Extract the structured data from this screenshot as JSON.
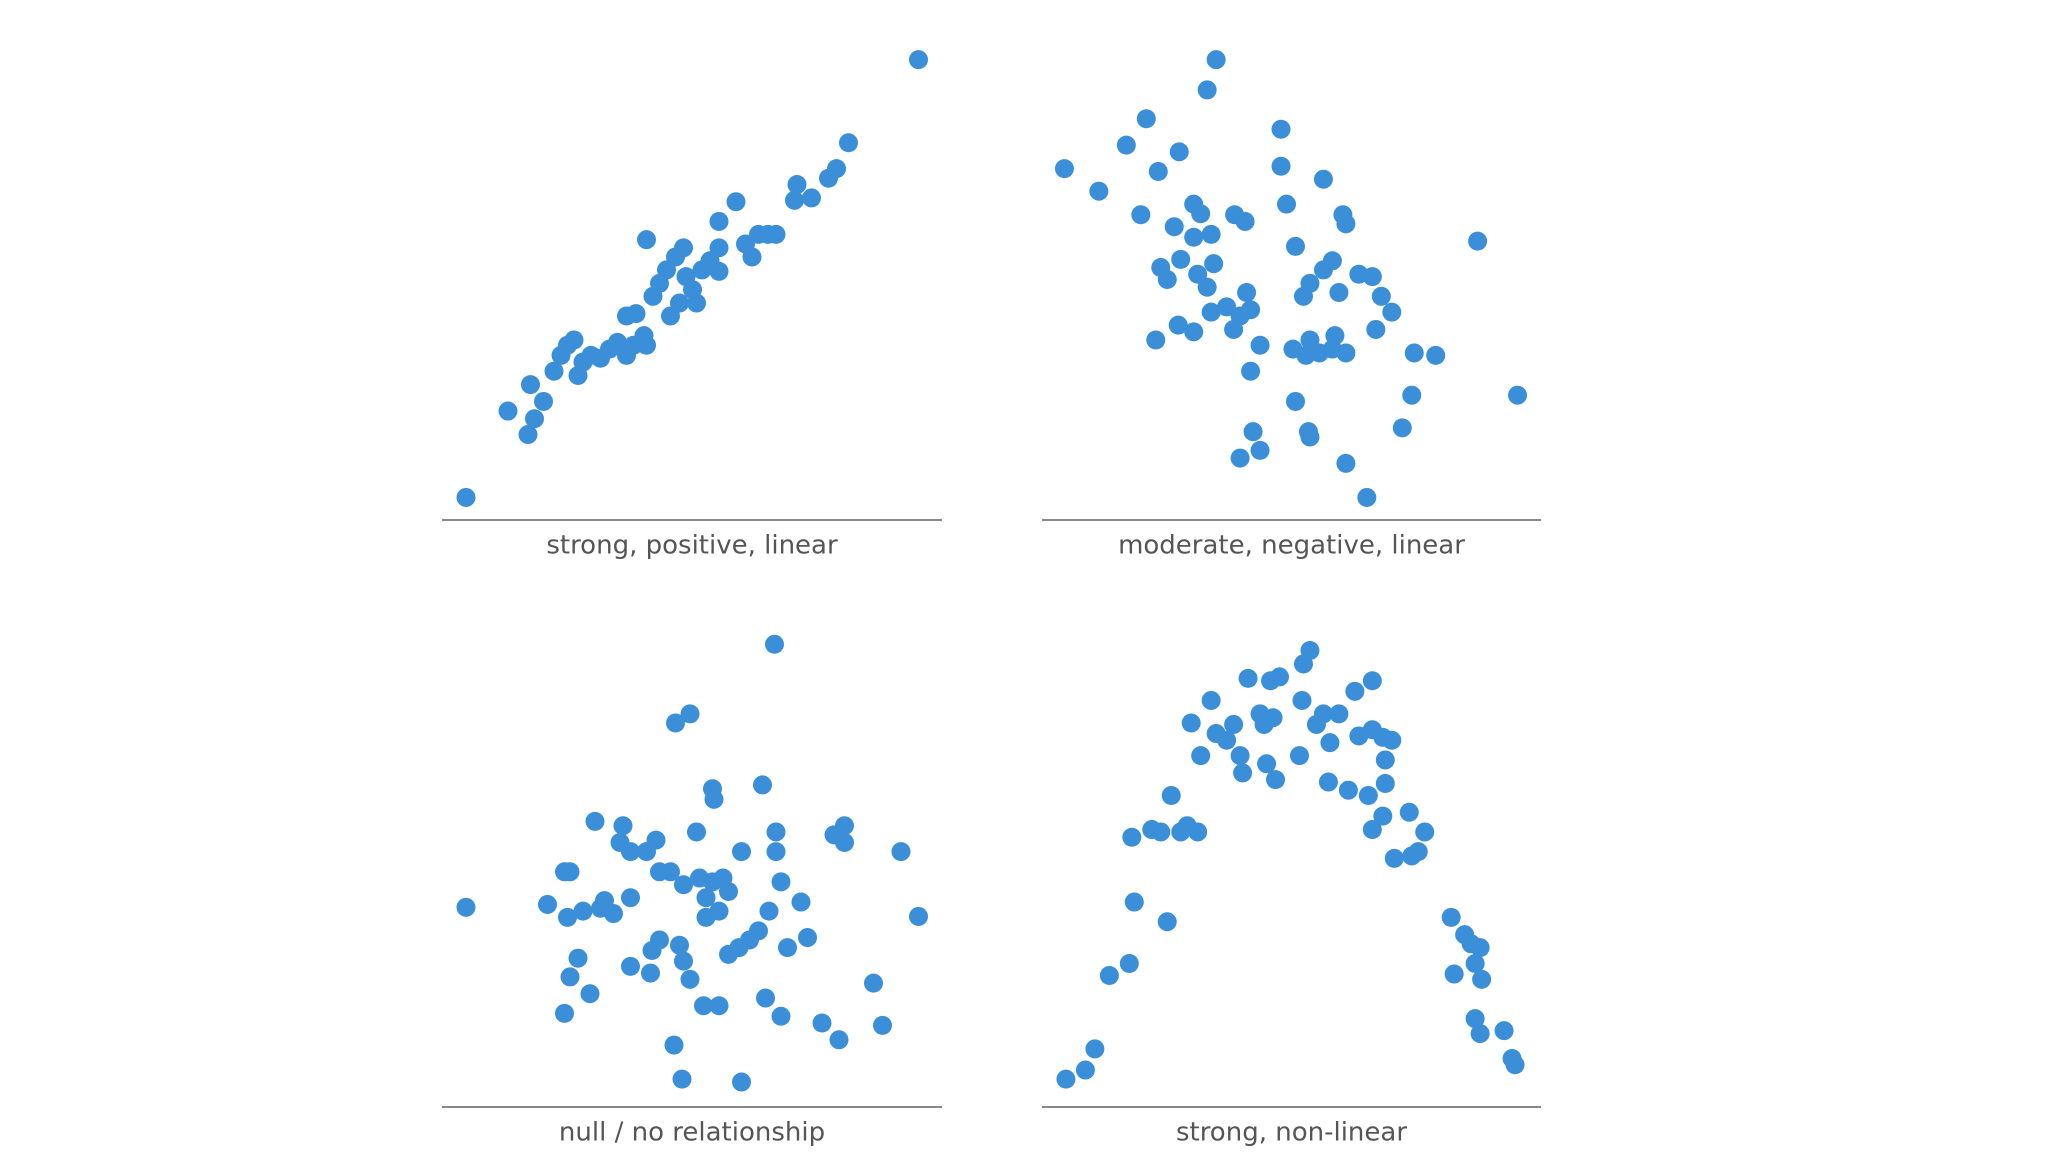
{
  "chart_data": [
    {
      "type": "scatter",
      "xlabel": "strong, positive, linear",
      "color": "#3b8fd8",
      "xlim": [
        0,
        100
      ],
      "ylim": [
        0,
        100
      ],
      "x": [
        4.8,
        13.2,
        17.2,
        18.5,
        20.3,
        17.7,
        22.4,
        23.8,
        25.1,
        26.4,
        27.2,
        28.2,
        29.8,
        31.7,
        33.5,
        35.1,
        36.9,
        38.3,
        40.4,
        40.9,
        36.9,
        38.8,
        40.9,
        42.2,
        43.5,
        44.9,
        45.7,
        46.7,
        47.5,
        48.3,
        48.8,
        50.1,
        50.9,
        52.0,
        53.6,
        55.4,
        55.4,
        55.4,
        58.8,
        60.7,
        62.0,
        63.3,
        65.2,
        66.8,
        70.5,
        71.0,
        73.9,
        77.3,
        78.9,
        81.3,
        95.3
      ],
      "y": [
        4.7,
        22.7,
        17.8,
        21.1,
        24.7,
        28.2,
        31.0,
        34.3,
        36.4,
        37.5,
        30.1,
        32.9,
        34.3,
        33.7,
        35.6,
        37.0,
        34.3,
        36.4,
        38.4,
        36.4,
        42.5,
        43.0,
        58.4,
        46.6,
        49.3,
        52.1,
        42.5,
        54.8,
        45.2,
        56.7,
        50.7,
        48.0,
        45.2,
        52.1,
        54.0,
        56.7,
        62.2,
        51.8,
        66.3,
        57.5,
        54.8,
        59.5,
        59.5,
        59.5,
        66.6,
        69.9,
        67.1,
        71.2,
        73.2,
        78.6,
        95.9
      ]
    },
    {
      "type": "scatter",
      "xlabel": "moderate, negative, linear",
      "color": "#3b8fd8",
      "xlim": [
        0,
        100
      ],
      "ylim": [
        0,
        100
      ],
      "x": [
        4.5,
        11.4,
        16.9,
        20.9,
        23.3,
        27.5,
        19.8,
        26.5,
        30.4,
        31.8,
        30.4,
        33.9,
        38.6,
        40.7,
        34.9,
        33.1,
        47.9,
        47.9,
        49.0,
        56.4,
        60.3,
        60.9,
        50.8,
        23.8,
        25.1,
        27.8,
        31.2,
        33.1,
        34.4,
        37.0,
        39.7,
        41.0,
        41.8,
        38.4,
        33.9,
        27.3,
        30.4,
        22.8,
        43.7,
        41.8,
        50.3,
        52.9,
        55.6,
        58.2,
        60.9,
        53.7,
        58.7,
        52.4,
        53.7,
        56.4,
        58.2,
        59.5,
        63.5,
        66.2,
        68.0,
        70.1,
        66.9,
        74.6,
        78.9,
        50.8,
        53.4,
        53.7,
        42.3,
        43.7,
        39.7,
        60.9,
        65.1,
        72.2,
        74.1,
        87.3,
        95.3
      ],
      "y": [
        73.2,
        68.5,
        78.1,
        83.6,
        72.6,
        76.7,
        63.6,
        61.1,
        65.8,
        63.8,
        58.9,
        59.5,
        63.6,
        62.2,
        95.9,
        89.6,
        81.4,
        73.7,
        65.8,
        71.0,
        63.6,
        61.7,
        57.0,
        52.6,
        50.1,
        54.3,
        51.2,
        48.5,
        53.4,
        44.4,
        42.5,
        47.4,
        43.8,
        39.7,
        43.3,
        40.6,
        39.2,
        37.5,
        36.4,
        31.0,
        35.6,
        34.3,
        34.8,
        35.6,
        34.8,
        37.5,
        38.4,
        46.6,
        49.3,
        52.1,
        54.0,
        47.4,
        51.2,
        50.7,
        46.6,
        43.3,
        39.7,
        34.8,
        34.3,
        24.7,
        18.4,
        17.3,
        18.4,
        14.5,
        12.9,
        11.8,
        4.7,
        19.2,
        26.0,
        58.1,
        26.0
      ]
    },
    {
      "type": "scatter",
      "xlabel": "null / no relationship",
      "color": "#3b8fd8",
      "xlim": [
        0,
        100
      ],
      "ylim": [
        0,
        100
      ],
      "x": [
        4.8,
        21.1,
        24.5,
        25.6,
        25.1,
        28.2,
        31.7,
        32.5,
        34.3,
        37.7,
        30.6,
        36.2,
        35.6,
        37.7,
        40.9,
        42.8,
        43.5,
        45.7,
        50.9,
        46.7,
        49.6,
        54.1,
        54.4,
        64.1,
        66.5,
        59.9,
        66.8,
        66.8,
        78.4,
        80.5,
        80.5,
        91.8,
        95.3,
        48.3,
        51.5,
        54.1,
        56.2,
        57.3,
        52.8,
        52.8,
        55.4,
        67.8,
        71.8,
        65.4,
        63.3,
        61.5,
        59.4,
        57.3,
        69.1,
        73.1,
        47.5,
        48.3,
        49.6,
        43.5,
        42.0,
        41.7,
        37.7,
        27.2,
        25.6,
        29.6,
        24.5,
        52.3,
        55.4,
        64.7,
        67.8,
        76.0,
        79.4,
        86.3,
        88.1,
        46.4,
        48.0,
        59.9
      ],
      "y": [
        41.6,
        42.2,
        49.0,
        49.0,
        39.5,
        40.8,
        41.4,
        43.0,
        40.3,
        43.6,
        59.5,
        58.6,
        55.1,
        53.2,
        53.2,
        55.6,
        49.0,
        49.0,
        57.3,
        80.0,
        81.9,
        66.3,
        64.1,
        67.1,
        96.4,
        53.2,
        57.3,
        53.2,
        56.7,
        58.6,
        55.1,
        53.2,
        39.7,
        46.3,
        47.7,
        46.9,
        47.7,
        44.9,
        43.6,
        39.5,
        40.8,
        46.9,
        42.7,
        40.8,
        36.7,
        34.8,
        33.2,
        31.8,
        33.2,
        35.3,
        33.7,
        30.4,
        26.6,
        34.8,
        32.6,
        27.9,
        29.3,
        31.0,
        27.1,
        23.6,
        19.5,
        21.1,
        21.1,
        22.7,
        18.9,
        17.5,
        14.0,
        25.8,
        17.0,
        12.9,
        5.8,
        5.2
      ]
    },
    {
      "type": "scatter",
      "xlabel": "strong, non-linear",
      "color": "#3b8fd8",
      "xlim": [
        0,
        100
      ],
      "ylim": [
        0,
        100
      ],
      "x": [
        4.8,
        8.7,
        10.6,
        13.5,
        17.5,
        18.5,
        25.1,
        18.0,
        22.0,
        23.8,
        25.9,
        27.8,
        29.1,
        31.2,
        29.9,
        31.8,
        33.9,
        34.9,
        37.0,
        38.4,
        39.7,
        40.2,
        41.3,
        43.7,
        44.5,
        45.8,
        47.6,
        46.3,
        45.0,
        46.8,
        51.6,
        52.1,
        52.4,
        53.7,
        55.0,
        56.4,
        57.7,
        59.5,
        62.7,
        66.2,
        63.5,
        66.2,
        68.3,
        70.1,
        68.8,
        57.4,
        61.4,
        65.4,
        68.8,
        66.2,
        68.3,
        73.6,
        76.7,
        75.4,
        74.1,
        70.6,
        82.0,
        84.7,
        86.0,
        87.8,
        86.8,
        88.1,
        82.6,
        86.8,
        87.8,
        92.6,
        94.2,
        94.8
      ],
      "y": [
        5.8,
        7.7,
        12.1,
        27.4,
        29.9,
        42.7,
        38.6,
        56.2,
        57.8,
        57.3,
        64.9,
        57.3,
        58.6,
        57.3,
        80.0,
        73.2,
        84.7,
        77.8,
        76.4,
        79.7,
        73.2,
        69.6,
        89.3,
        81.9,
        79.7,
        88.8,
        89.6,
        81.1,
        71.5,
        68.2,
        73.2,
        84.7,
        92.3,
        95.1,
        79.7,
        81.9,
        75.9,
        81.9,
        86.6,
        88.8,
        77.3,
        78.6,
        77.0,
        76.4,
        72.3,
        67.7,
        66.0,
        64.9,
        67.4,
        57.8,
        60.6,
        61.4,
        57.3,
        53.2,
        52.3,
        51.8,
        39.5,
        35.9,
        34.0,
        33.2,
        29.9,
        26.6,
        27.7,
        18.4,
        15.3,
        15.9,
        10.1,
        8.8
      ]
    }
  ]
}
